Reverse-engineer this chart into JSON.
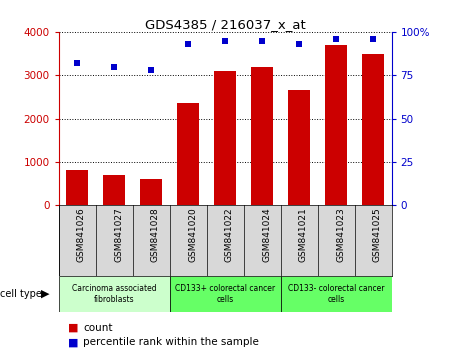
{
  "title": "GDS4385 / 216037_x_at",
  "samples": [
    "GSM841026",
    "GSM841027",
    "GSM841028",
    "GSM841020",
    "GSM841022",
    "GSM841024",
    "GSM841021",
    "GSM841023",
    "GSM841025"
  ],
  "counts": [
    820,
    700,
    600,
    2350,
    3100,
    3200,
    2650,
    3700,
    3500
  ],
  "percentiles": [
    82,
    80,
    78,
    93,
    95,
    95,
    93,
    96,
    96
  ],
  "bar_color": "#cc0000",
  "dot_color": "#0000cc",
  "ylim_left": [
    0,
    4000
  ],
  "ylim_right": [
    0,
    100
  ],
  "yticks_left": [
    0,
    1000,
    2000,
    3000,
    4000
  ],
  "yticks_right": [
    0,
    25,
    50,
    75,
    100
  ],
  "ytick_labels_right": [
    "0",
    "25",
    "50",
    "75",
    "100%"
  ],
  "grid_color": "black",
  "groups": [
    {
      "label": "Carcinoma associated\nfibroblasts",
      "start": 0,
      "end": 3,
      "color": "#ccffcc"
    },
    {
      "label": "CD133+ colorectal cancer\ncells",
      "start": 3,
      "end": 6,
      "color": "#66ff66"
    },
    {
      "label": "CD133- colorectal cancer\ncells",
      "start": 6,
      "end": 9,
      "color": "#66ff66"
    }
  ],
  "cell_type_label": "cell type",
  "legend_count_label": "count",
  "legend_percentile_label": "percentile rank within the sample",
  "sample_bg_color": "#d8d8d8",
  "plot_bg": "#ffffff"
}
